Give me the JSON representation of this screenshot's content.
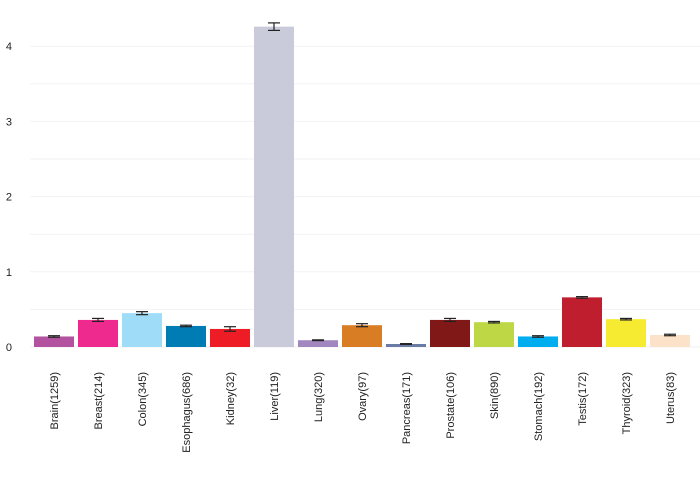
{
  "chart_data": {
    "type": "bar",
    "title": "",
    "xlabel": "",
    "ylabel": "",
    "ylim": [
      0,
      4.4
    ],
    "yticks": [
      0,
      1,
      2,
      3,
      4
    ],
    "grid": true,
    "categories": [
      "Brain(1259)",
      "Breast(214)",
      "Colon(345)",
      "Esophagus(686)",
      "Kidney(32)",
      "Liver(119)",
      "Lung(320)",
      "Ovary(97)",
      "Pancreas(171)",
      "Prostate(106)",
      "Skin(890)",
      "Stomach(192)",
      "Testis(172)",
      "Thyroid(323)",
      "Uterus(83)"
    ],
    "values": [
      0.14,
      0.36,
      0.45,
      0.28,
      0.24,
      4.26,
      0.09,
      0.29,
      0.04,
      0.36,
      0.33,
      0.14,
      0.66,
      0.37,
      0.16
    ],
    "errors": [
      0.01,
      0.02,
      0.02,
      0.01,
      0.03,
      0.05,
      0.005,
      0.02,
      0.005,
      0.02,
      0.01,
      0.01,
      0.01,
      0.01,
      0.01
    ],
    "colors": [
      "#b3529f",
      "#ee2a8f",
      "#9fdcf8",
      "#007cb5",
      "#ee1c24",
      "#c9cbdb",
      "#a286c0",
      "#d97d25",
      "#6a7ba5",
      "#801818",
      "#bed845",
      "#00aeef",
      "#be1e2d",
      "#f6eb30",
      "#fbe2c8"
    ]
  }
}
